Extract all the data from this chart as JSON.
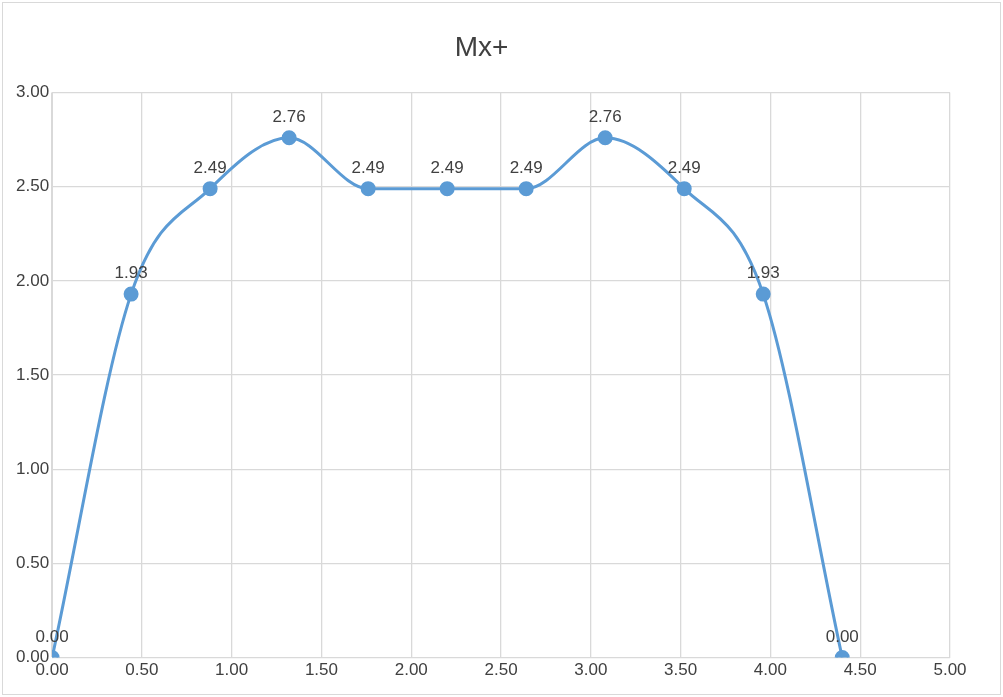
{
  "chart_data": {
    "type": "line",
    "title": "Mx+",
    "x": [
      0,
      0.44,
      0.88,
      1.32,
      1.76,
      2.2,
      2.64,
      3.08,
      3.52,
      3.96,
      4.4
    ],
    "series": [
      {
        "color": "#5b9bd5",
        "values": [
          0,
          1.93,
          2.49,
          2.76,
          2.49,
          2.49,
          2.49,
          2.76,
          2.49,
          1.93,
          0
        ],
        "value_labels": [
          "0.00",
          "1.93",
          "2.49",
          "2.76",
          "2.49",
          "2.49",
          "2.49",
          "2.76",
          "2.49",
          "1.93",
          "0.00"
        ]
      }
    ],
    "xlim": [
      0,
      5
    ],
    "xticks": [
      {
        "value": 0,
        "label": "0.00"
      },
      {
        "value": 0.5,
        "label": "0.50"
      },
      {
        "value": 1,
        "label": "1.00"
      },
      {
        "value": 1.5,
        "label": "1.50"
      },
      {
        "value": 2,
        "label": "2.00"
      },
      {
        "value": 2.5,
        "label": "2.50"
      },
      {
        "value": 3,
        "label": "3.00"
      },
      {
        "value": 3.5,
        "label": "3.50"
      },
      {
        "value": 4,
        "label": "4.00"
      },
      {
        "value": 4.5,
        "label": "4.50"
      },
      {
        "value": 5,
        "label": "5.00"
      }
    ],
    "ylim": [
      0,
      3
    ],
    "yticks": [
      {
        "value": 0,
        "label": "0.00"
      },
      {
        "value": 0.5,
        "label": "0.50"
      },
      {
        "value": 1,
        "label": "1.00"
      },
      {
        "value": 1.5,
        "label": "1.50"
      },
      {
        "value": 2,
        "label": "2.00"
      },
      {
        "value": 2.5,
        "label": "2.50"
      },
      {
        "value": 3,
        "label": "3.00"
      }
    ],
    "grid": true,
    "legend": false,
    "marker": "circle",
    "line_style": "solid"
  }
}
